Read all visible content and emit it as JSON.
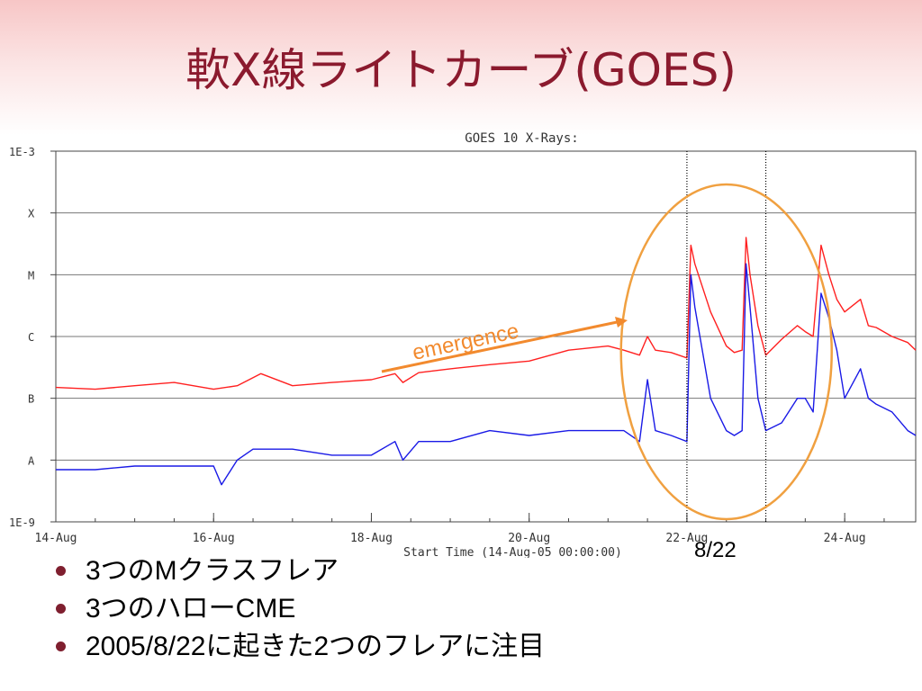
{
  "slide": {
    "title": "軟X線ライトカーブ(GOES)",
    "bullets": [
      "3つのMクラスフレア",
      "3つのハローCME",
      "2005/8/22に起きた2つのフレアに注目"
    ]
  },
  "annotations": {
    "emergence_label": "emergence",
    "date_callout": "8/22",
    "arrow_color": "#f28a2e",
    "ellipse_color": "#f0a040"
  },
  "chart_data": {
    "type": "line",
    "title": "GOES 10 X-Rays:",
    "xlabel": "Start Time (14-Aug-05 00:00:00)",
    "ylabel": "",
    "yscale": "log",
    "ylim": [
      "1E-9",
      "1E-3"
    ],
    "y_ticks": [
      "1E-3",
      "X",
      "M",
      "C",
      "B",
      "A",
      "1E-9"
    ],
    "x_ticks": [
      "14-Aug",
      "16-Aug",
      "18-Aug",
      "20-Aug",
      "22-Aug",
      "24-Aug"
    ],
    "xlim_days": [
      14,
      24.9
    ],
    "grid": true,
    "series": [
      {
        "color": "#ff2020",
        "x": [
          14.0,
          14.5,
          15.0,
          15.5,
          16.0,
          16.3,
          16.6,
          17.0,
          17.5,
          18.0,
          18.3,
          18.4,
          18.6,
          19.0,
          19.5,
          20.0,
          20.5,
          21.0,
          21.2,
          21.4,
          21.5,
          21.6,
          21.8,
          22.0,
          22.05,
          22.1,
          22.3,
          22.5,
          22.6,
          22.7,
          22.75,
          22.8,
          22.9,
          23.0,
          23.2,
          23.4,
          23.5,
          23.6,
          23.7,
          23.8,
          23.9,
          24.0,
          24.2,
          24.3,
          24.4,
          24.6,
          24.8,
          24.9
        ],
        "y": [
          "1.5E-7",
          "1.4E-7",
          "1.6E-7",
          "1.8E-7",
          "1.4E-7",
          "1.6E-7",
          "2.5E-7",
          "1.6E-7",
          "1.8E-7",
          "2.0E-7",
          "2.5E-7",
          "1.8E-7",
          "2.6E-7",
          "3.0E-7",
          "3.5E-7",
          "4.0E-7",
          "6.0E-7",
          "7.0E-7",
          "6.0E-7",
          "5.0E-7",
          "1.0E-6",
          "6.0E-7",
          "5.5E-7",
          "4.5E-7",
          "3.0E-5",
          "1.5E-5",
          "2.5E-6",
          "7.0E-7",
          "5.5E-7",
          "6.0E-7",
          "4.0E-5",
          "1.0E-5",
          "1.5E-6",
          "5.0E-7",
          "9.0E-7",
          "1.5E-6",
          "1.2E-6",
          "1.0E-6",
          "3.0E-5",
          "1.0E-5",
          "4.0E-6",
          "2.5E-6",
          "4.0E-6",
          "1.5E-6",
          "1.4E-6",
          "1.0E-6",
          "8.0E-7",
          "6.0E-7"
        ]
      },
      {
        "color": "#1a1ae6",
        "x": [
          14.0,
          14.5,
          15.0,
          15.5,
          16.0,
          16.1,
          16.3,
          16.5,
          17.0,
          17.5,
          18.0,
          18.3,
          18.4,
          18.6,
          19.0,
          19.5,
          20.0,
          20.5,
          21.0,
          21.2,
          21.4,
          21.5,
          21.6,
          21.8,
          22.0,
          22.05,
          22.1,
          22.3,
          22.5,
          22.6,
          22.7,
          22.75,
          22.8,
          22.9,
          23.0,
          23.2,
          23.4,
          23.5,
          23.6,
          23.7,
          23.8,
          23.9,
          24.0,
          24.2,
          24.3,
          24.4,
          24.6,
          24.8,
          24.9
        ],
        "y": [
          "7E-9",
          "7E-9",
          "8E-9",
          "8E-9",
          "8E-9",
          "4E-9",
          "1E-8",
          "1.5E-8",
          "1.5E-8",
          "1.2E-8",
          "1.2E-8",
          "2E-8",
          "1E-8",
          "2E-8",
          "2E-8",
          "3E-8",
          "2.5E-8",
          "3E-8",
          "3E-8",
          "3E-8",
          "2E-8",
          "2E-7",
          "3E-8",
          "2.5E-8",
          "2E-8",
          "1E-5",
          "3E-6",
          "1E-7",
          "3E-8",
          "2.5E-8",
          "3E-8",
          "1.5E-5",
          "3E-6",
          "1E-7",
          "3E-8",
          "4E-8",
          "1E-7",
          "1E-7",
          "6E-8",
          "5E-6",
          "2E-6",
          "6E-7",
          "1E-7",
          "3E-7",
          "1E-7",
          "8E-8",
          "6E-8",
          "3E-8",
          "2.5E-8"
        ]
      }
    ],
    "marked_days": [
      22.0,
      23.0
    ]
  }
}
